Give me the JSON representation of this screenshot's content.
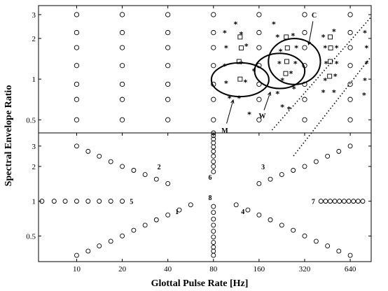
{
  "chart_data": {
    "type": "scatter",
    "xlabel": "Glottal Pulse Rate [Hz]",
    "ylabel": "Spectral Envelope Ratio",
    "xscale": "log2",
    "yscale": "log",
    "xlim": [
      5.6,
      880
    ],
    "x_ticks": [
      "10",
      "20",
      "40",
      "80",
      "160",
      "320",
      "640"
    ],
    "panels": [
      {
        "name": "top",
        "ylim": [
          0.4,
          3.5
        ],
        "y_ticks": [
          "0.5",
          "1",
          "2",
          "3"
        ],
        "grid_circles": {
          "x": [
            10,
            20,
            40,
            80,
            160,
            320,
            640
          ],
          "y": [
            0.5,
            0.707,
            0.917,
            1.26,
            1.71,
            2.21,
            3.0
          ]
        },
        "stars": [
          [
            95,
            2.2
          ],
          [
            97,
            1.7
          ],
          [
            95,
            1.25
          ],
          [
            97,
            0.93
          ],
          [
            102,
            0.72
          ],
          [
            112,
            2.55
          ],
          [
            122,
            2.15
          ],
          [
            132,
            1.75
          ],
          [
            122,
            1.3
          ],
          [
            130,
            0.95
          ],
          [
            118,
            0.72
          ],
          [
            138,
            0.55
          ],
          [
            148,
            1.15
          ],
          [
            200,
            2.55
          ],
          [
            212,
            2.05
          ],
          [
            222,
            1.6
          ],
          [
            218,
            1.3
          ],
          [
            228,
            0.98
          ],
          [
            212,
            0.78
          ],
          [
            228,
            0.62
          ],
          [
            268,
            2.1
          ],
          [
            282,
            1.7
          ],
          [
            278,
            1.3
          ],
          [
            260,
            1.1
          ],
          [
            272,
            0.85
          ],
          [
            252,
            0.6
          ],
          [
            425,
            2.05
          ],
          [
            437,
            1.7
          ],
          [
            443,
            1.3
          ],
          [
            437,
            0.98
          ],
          [
            425,
            0.8
          ],
          [
            500,
            2.25
          ],
          [
            520,
            1.7
          ],
          [
            520,
            1.3
          ],
          [
            510,
            1.05
          ],
          [
            500,
            0.8
          ],
          [
            800,
            2.2
          ],
          [
            820,
            1.7
          ],
          [
            820,
            1.3
          ],
          [
            800,
            0.98
          ],
          [
            790,
            0.76
          ]
        ],
        "squares": [
          [
            120,
            2.05
          ],
          [
            122,
            1.7
          ],
          [
            118,
            1.35
          ],
          [
            120,
            1.0
          ],
          [
            242,
            2.05
          ],
          [
            246,
            1.7
          ],
          [
            244,
            1.35
          ],
          [
            240,
            1.1
          ],
          [
            472,
            2.05
          ],
          [
            475,
            1.7
          ],
          [
            472,
            1.35
          ],
          [
            468,
            1.05
          ]
        ],
        "ellipses": [
          {
            "label": "M",
            "cx": 120,
            "cy": 0.99,
            "rx_oct": 0.63,
            "ry_dec": 0.125
          },
          {
            "label": "W",
            "cx": 219,
            "cy": 1.15,
            "rx_oct": 0.55,
            "ry_dec": 0.13
          },
          {
            "label": "C",
            "cx": 274,
            "cy": 1.35,
            "rx_oct": 0.57,
            "ry_dec": 0.17
          }
        ],
        "dotted_lines": [
          [
            [
              195,
              0.42
            ],
            [
              880,
              2.85
            ]
          ],
          [
            [
              270,
              0.27
            ],
            [
              880,
              1.45
            ]
          ]
        ],
        "annotations": [
          {
            "text": "C",
            "x": 370,
            "y": 3.0,
            "to": [
              340,
              1.8
            ]
          },
          {
            "text": "W",
            "x": 168,
            "y": 0.54,
            "to": [
              190,
              0.8
            ]
          },
          {
            "text": "M",
            "x": 95,
            "y": 0.42,
            "to": [
              108,
              0.7
            ]
          }
        ]
      },
      {
        "name": "bottom",
        "ylim": [
          0.3,
          3.9
        ],
        "y_ticks": [
          "0.5",
          "1",
          "2",
          "3"
        ],
        "spokes": [
          {
            "label": "1",
            "pts": [
              [
                10,
                0.34
              ],
              [
                11.9,
                0.37
              ],
              [
                14.1,
                0.41
              ],
              [
                16.8,
                0.45
              ],
              [
                20,
                0.5
              ],
              [
                23.8,
                0.56
              ],
              [
                28.3,
                0.62
              ],
              [
                33.6,
                0.69
              ],
              [
                40,
                0.76
              ],
              [
                47.6,
                0.84
              ],
              [
                56.6,
                0.93
              ]
            ]
          },
          {
            "label": "2",
            "pts": [
              [
                10,
                3.0
              ],
              [
                11.9,
                2.7
              ],
              [
                14.1,
                2.45
              ],
              [
                16.8,
                2.2
              ],
              [
                20,
                2.0
              ],
              [
                23.8,
                1.85
              ],
              [
                28.3,
                1.7
              ],
              [
                33.6,
                1.55
              ],
              [
                40,
                1.42
              ]
            ]
          },
          {
            "label": "3",
            "pts": [
              [
                160,
                1.42
              ],
              [
                190,
                1.55
              ],
              [
                226,
                1.7
              ],
              [
                269,
                1.85
              ],
              [
                320,
                2.0
              ],
              [
                381,
                2.2
              ],
              [
                453,
                2.45
              ],
              [
                538,
                2.7
              ],
              [
                640,
                3.0
              ]
            ]
          },
          {
            "label": "4",
            "pts": [
              [
                113,
                0.93
              ],
              [
                135,
                0.84
              ],
              [
                160,
                0.76
              ],
              [
                190,
                0.69
              ],
              [
                226,
                0.62
              ],
              [
                269,
                0.56
              ],
              [
                320,
                0.5
              ],
              [
                381,
                0.45
              ],
              [
                453,
                0.41
              ],
              [
                538,
                0.37
              ],
              [
                640,
                0.34
              ]
            ]
          },
          {
            "label": "5",
            "pts": [
              [
                5.9,
                1.0
              ],
              [
                7.1,
                1.0
              ],
              [
                8.4,
                1.0
              ],
              [
                10,
                1.0
              ],
              [
                11.9,
                1.0
              ],
              [
                14.1,
                1.0
              ],
              [
                16.8,
                1.0
              ],
              [
                20,
                1.0
              ]
            ]
          },
          {
            "label": "6",
            "pts": [
              [
                80,
                3.9
              ],
              [
                80,
                3.7
              ],
              [
                80,
                3.45
              ],
              [
                80,
                3.2
              ],
              [
                80,
                2.95
              ],
              [
                80,
                2.7
              ],
              [
                80,
                2.45
              ],
              [
                80,
                2.2
              ],
              [
                80,
                2.0
              ],
              [
                80,
                1.8
              ]
            ]
          },
          {
            "label": "7",
            "pts": [
              [
                410,
                1.0
              ],
              [
                440,
                1.0
              ],
              [
                472,
                1.0
              ],
              [
                506,
                1.0
              ],
              [
                543,
                1.0
              ],
              [
                583,
                1.0
              ],
              [
                626,
                1.0
              ],
              [
                672,
                1.0
              ],
              [
                721,
                1.0
              ],
              [
                774,
                1.0
              ]
            ]
          },
          {
            "label": "8",
            "pts": [
              [
                80,
                0.9
              ],
              [
                80,
                0.8
              ],
              [
                80,
                0.7
              ],
              [
                80,
                0.62
              ],
              [
                80,
                0.55
              ],
              [
                80,
                0.49
              ],
              [
                80,
                0.44
              ],
              [
                80,
                0.4
              ],
              [
                80,
                0.37
              ],
              [
                80,
                0.34
              ]
            ]
          }
        ],
        "labels": [
          {
            "text": "1",
            "x": 46,
            "y": 0.82
          },
          {
            "text": "2",
            "x": 35,
            "y": 2.0
          },
          {
            "text": "3",
            "x": 170,
            "y": 2.0
          },
          {
            "text": "4",
            "x": 125,
            "y": 0.82
          },
          {
            "text": "5",
            "x": 23,
            "y": 1.0
          },
          {
            "text": "6",
            "x": 76,
            "y": 1.62
          },
          {
            "text": "7",
            "x": 365,
            "y": 1.0
          },
          {
            "text": "8",
            "x": 76,
            "y": 1.08
          }
        ]
      }
    ]
  }
}
